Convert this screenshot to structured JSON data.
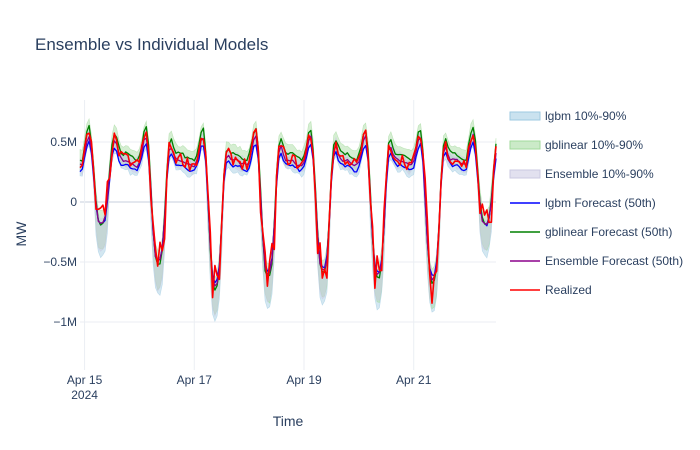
{
  "chart_data": {
    "type": "line",
    "title": "Ensemble vs Individual Models",
    "xlabel": "Time",
    "ylabel": "MW",
    "x_range": [
      "2024-04-14T22:00",
      "2024-04-22T12:00"
    ],
    "ylim": [
      -1.4,
      0.85
    ],
    "x_ticks": [
      {
        "date": "2024-04-15",
        "label": "Apr 15",
        "sublabel": "2024"
      },
      {
        "date": "2024-04-17",
        "label": "Apr 17",
        "sublabel": ""
      },
      {
        "date": "2024-04-19",
        "label": "Apr 19",
        "sublabel": ""
      },
      {
        "date": "2024-04-21",
        "label": "Apr 21",
        "sublabel": ""
      }
    ],
    "y_ticks": [
      {
        "value": 0.5,
        "label": "0.5M"
      },
      {
        "value": 0,
        "label": "0"
      },
      {
        "value": -0.5,
        "label": "−0.5M"
      },
      {
        "value": -1,
        "label": "−1M"
      }
    ],
    "grid": true,
    "legend_position": "right",
    "day_profile": {
      "days": [
        "2024-04-15",
        "2024-04-16",
        "2024-04-17",
        "2024-04-18",
        "2024-04-19",
        "2024-04-20",
        "2024-04-21",
        "2024-04-22"
      ],
      "dip_min": [
        -0.3,
        -0.75,
        -1.05,
        -0.9,
        -0.85,
        -0.9,
        -0.95,
        -0.3
      ],
      "dip_hour": [
        6,
        7,
        8,
        7,
        7,
        7,
        7,
        6
      ]
    },
    "series": [
      {
        "name": "lgbm 10%-90%",
        "kind": "band",
        "color": "#9ecae1",
        "opacity": 0.45,
        "offset": -0.03,
        "upper_width": 0.06,
        "lower_width": 0.16
      },
      {
        "name": "gblinear 10%-90%",
        "kind": "band",
        "color": "#a1d99b",
        "opacity": 0.45,
        "offset": 0.04,
        "upper_width": 0.08,
        "lower_width": 0.16
      },
      {
        "name": "Ensemble 10%-90%",
        "kind": "band",
        "color": "#cbc9e2",
        "opacity": 0.45,
        "offset": 0.0,
        "upper_width": 0.06,
        "lower_width": 0.14
      },
      {
        "name": "lgbm Forecast (50th)",
        "kind": "line",
        "color": "#0000ff",
        "offset": -0.04,
        "scale": 0.9
      },
      {
        "name": "gblinear Forecast (50th)",
        "kind": "line",
        "color": "#008000",
        "offset": 0.05,
        "scale": 1.05
      },
      {
        "name": "Ensemble Forecast (50th)",
        "kind": "line",
        "color": "#8b008b",
        "offset": 0.0,
        "scale": 0.97
      },
      {
        "name": "Realized",
        "kind": "line",
        "color": "#ff0000",
        "offset": 0.01,
        "scale": 1.0,
        "noise": 0.09
      }
    ]
  }
}
